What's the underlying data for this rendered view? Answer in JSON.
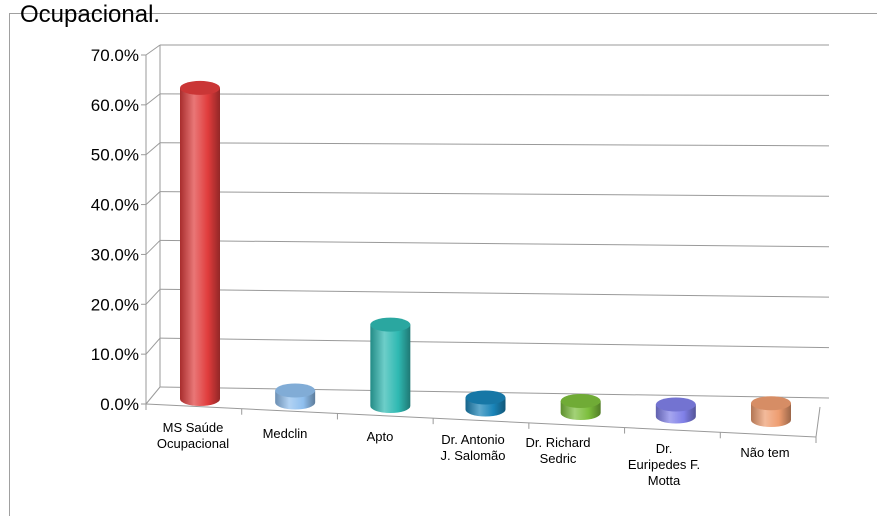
{
  "heading_fragment": "Ocupacional.",
  "colors": {
    "grid": "#9a9a9a",
    "bars": [
      "#e03c3c",
      "#8fbfee",
      "#2fb9b2",
      "#1a84b8",
      "#7cbe3c",
      "#8080e8",
      "#ee9d70"
    ]
  },
  "chart_data": {
    "type": "bar",
    "style": "3d-cylinder",
    "title": "",
    "xlabel": "",
    "ylabel": "",
    "ylim": [
      0,
      70
    ],
    "ytick_values": [
      0,
      10,
      20,
      30,
      40,
      50,
      60,
      70
    ],
    "ytick_labels": [
      "0.0%",
      "10.0%",
      "20.0%",
      "30.0%",
      "40.0%",
      "50.0%",
      "60.0%",
      "70.0%"
    ],
    "grid": true,
    "categories": [
      [
        "MS Saúde",
        "Ocupacional"
      ],
      [
        "Medclin"
      ],
      [
        "Apto"
      ],
      [
        "Dr. Antonio",
        "J. Salomão"
      ],
      [
        "Dr. Richard",
        "Sedric"
      ],
      [
        "Dr.",
        "Euripedes F.",
        "Motta"
      ],
      [
        "Não tem"
      ]
    ],
    "values": [
      65.0,
      2.0,
      17.0,
      1.5,
      1.5,
      1.5,
      3.5
    ]
  }
}
